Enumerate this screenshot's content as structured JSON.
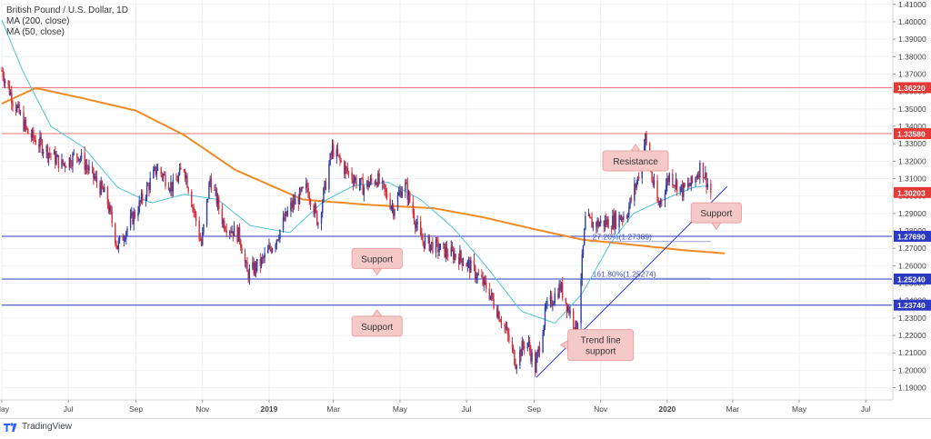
{
  "header": {
    "title": "British Pound / U.S. Dollar, 1D",
    "indicators": [
      "MA (200, close)",
      "MA (50, close)"
    ]
  },
  "footer": {
    "brand": "TradingView"
  },
  "colors": {
    "up": "#2f3fa6",
    "down": "#d32f3b",
    "ma200": "#f08a24",
    "ma50": "#4fc3dc",
    "resistance_line": "#e57373",
    "support_line": "#2b39c4",
    "trendline": "#2b39c4",
    "label_fill": "#f6c9c9",
    "label_stroke": "#e8a3a3"
  },
  "chart_data": {
    "type": "candlestick",
    "title": "British Pound / U.S. Dollar, 1D",
    "x_axis": {
      "type": "date",
      "range": [
        "2018-05-01",
        "2020-07-25"
      ],
      "tick_labels": [
        {
          "date": "2018-05-01",
          "label": "May"
        },
        {
          "date": "2018-07-01",
          "label": "Jul"
        },
        {
          "date": "2018-09-01",
          "label": "Sep"
        },
        {
          "date": "2018-11-01",
          "label": "Nov"
        },
        {
          "date": "2019-01-01",
          "label": "2019"
        },
        {
          "date": "2019-03-01",
          "label": "Mar"
        },
        {
          "date": "2019-05-01",
          "label": "May"
        },
        {
          "date": "2019-07-01",
          "label": "Jul"
        },
        {
          "date": "2019-09-01",
          "label": "Sep"
        },
        {
          "date": "2019-11-01",
          "label": "Nov"
        },
        {
          "date": "2020-01-01",
          "label": "2020"
        },
        {
          "date": "2020-03-01",
          "label": "Mar"
        },
        {
          "date": "2020-05-01",
          "label": "May"
        },
        {
          "date": "2020-07-01",
          "label": "Jul"
        }
      ]
    },
    "y_axis": {
      "min": 1.183,
      "max": 1.4125,
      "ticks": [
        "1.41000",
        "1.40000",
        "1.39000",
        "1.38000",
        "1.37000",
        "1.36000",
        "1.35000",
        "1.34000",
        "1.33000",
        "1.32000",
        "1.31000",
        "1.30000",
        "1.29000",
        "1.28000",
        "1.27000",
        "1.26000",
        "1.25000",
        "1.24000",
        "1.23000",
        "1.22000",
        "1.21000",
        "1.20000",
        "1.19000"
      ]
    },
    "price_badges": [
      {
        "value": "1.36220",
        "color": "#e53935"
      },
      {
        "value": "1.33580",
        "color": "#e53935"
      },
      {
        "value": "1.30203",
        "color": "#e53935"
      },
      {
        "value": "1.27690",
        "color": "#2b39c4"
      },
      {
        "value": "1.25240",
        "color": "#2b39c4"
      },
      {
        "value": "1.23740",
        "color": "#2b39c4"
      }
    ],
    "horizontal_levels": [
      {
        "price": 1.3622,
        "kind": "resistance"
      },
      {
        "price": 1.3358,
        "kind": "resistance"
      },
      {
        "price": 1.2769,
        "kind": "support"
      },
      {
        "price": 1.2524,
        "kind": "support"
      },
      {
        "price": 1.2374,
        "kind": "support"
      }
    ],
    "fib_levels": [
      {
        "label": "27.20%(1.27389)",
        "price": 1.27389,
        "from": "2019-10-22",
        "to": "2020-02-10"
      },
      {
        "label": "161.80%(1.25274)",
        "price": 1.25274,
        "from": "2019-10-22",
        "to": "2020-02-10"
      }
    ],
    "trendline": {
      "from": {
        "date": "2019-09-03",
        "price": 1.1959
      },
      "to": {
        "date": "2020-02-25",
        "price": 1.3055
      }
    },
    "annotations": [
      {
        "text": "Resistance",
        "date": "2019-12-03",
        "price": 1.3202,
        "pointer": "up"
      },
      {
        "text": "Support",
        "date": "2020-02-15",
        "price": 1.2904,
        "pointer": "down"
      },
      {
        "text": "Support",
        "date": "2019-04-10",
        "price": 1.2642,
        "pointer": "down"
      },
      {
        "text": "Support",
        "date": "2019-04-10",
        "price": 1.2253,
        "pointer": "up"
      },
      {
        "text": "Trend line\nsupport",
        "date": "2019-11-01",
        "price": 1.2145,
        "pointer": "left"
      }
    ],
    "close_anchors": [
      [
        "2018-05-01",
        1.372
      ],
      [
        "2018-05-12",
        1.354
      ],
      [
        "2018-05-25",
        1.336
      ],
      [
        "2018-06-10",
        1.327
      ],
      [
        "2018-06-25",
        1.318
      ],
      [
        "2018-07-10",
        1.324
      ],
      [
        "2018-07-25",
        1.31
      ],
      [
        "2018-08-05",
        1.299
      ],
      [
        "2018-08-15",
        1.271
      ],
      [
        "2018-08-25",
        1.283
      ],
      [
        "2018-09-05",
        1.296
      ],
      [
        "2018-09-20",
        1.316
      ],
      [
        "2018-10-05",
        1.305
      ],
      [
        "2018-10-15",
        1.317
      ],
      [
        "2018-10-31",
        1.272
      ],
      [
        "2018-11-08",
        1.31
      ],
      [
        "2018-11-20",
        1.285
      ],
      [
        "2018-12-05",
        1.277
      ],
      [
        "2018-12-12",
        1.255
      ],
      [
        "2018-12-25",
        1.262
      ],
      [
        "2019-01-07",
        1.275
      ],
      [
        "2019-01-20",
        1.293
      ],
      [
        "2019-02-05",
        1.305
      ],
      [
        "2019-02-15",
        1.285
      ],
      [
        "2019-02-28",
        1.327
      ],
      [
        "2019-03-12",
        1.315
      ],
      [
        "2019-03-28",
        1.305
      ],
      [
        "2019-04-10",
        1.31
      ],
      [
        "2019-04-25",
        1.293
      ],
      [
        "2019-05-05",
        1.308
      ],
      [
        "2019-05-20",
        1.275
      ],
      [
        "2019-06-05",
        1.27
      ],
      [
        "2019-06-25",
        1.265
      ],
      [
        "2019-07-05",
        1.259
      ],
      [
        "2019-07-20",
        1.247
      ],
      [
        "2019-08-05",
        1.225
      ],
      [
        "2019-08-15",
        1.205
      ],
      [
        "2019-08-25",
        1.218
      ],
      [
        "2019-09-02",
        1.201
      ],
      [
        "2019-09-12",
        1.235
      ],
      [
        "2019-09-25",
        1.248
      ],
      [
        "2019-10-07",
        1.228
      ],
      [
        "2019-10-10",
        1.222
      ],
      [
        "2019-10-18",
        1.286
      ],
      [
        "2019-10-25",
        1.284
      ],
      [
        "2019-11-10",
        1.285
      ],
      [
        "2019-11-25",
        1.29
      ],
      [
        "2019-12-05",
        1.31
      ],
      [
        "2019-12-12",
        1.333
      ],
      [
        "2019-12-18",
        1.31
      ],
      [
        "2019-12-24",
        1.294
      ],
      [
        "2020-01-03",
        1.312
      ],
      [
        "2020-01-15",
        1.303
      ],
      [
        "2020-01-25",
        1.308
      ],
      [
        "2020-02-01",
        1.318
      ],
      [
        "2020-02-10",
        1.302
      ]
    ],
    "ma200_anchors": [
      [
        "2018-05-01",
        1.353
      ],
      [
        "2018-06-01",
        1.362
      ],
      [
        "2018-07-15",
        1.356
      ],
      [
        "2018-09-01",
        1.349
      ],
      [
        "2018-10-15",
        1.335
      ],
      [
        "2018-12-01",
        1.315
      ],
      [
        "2019-02-01",
        1.298
      ],
      [
        "2019-04-01",
        1.295
      ],
      [
        "2019-06-01",
        1.293
      ],
      [
        "2019-07-15",
        1.288
      ],
      [
        "2019-09-01",
        1.281
      ],
      [
        "2019-10-15",
        1.275
      ],
      [
        "2019-12-01",
        1.272
      ],
      [
        "2020-01-15",
        1.269
      ],
      [
        "2020-02-25",
        1.267
      ]
    ],
    "ma50_anchors": [
      [
        "2018-05-01",
        1.401
      ],
      [
        "2018-05-20",
        1.372
      ],
      [
        "2018-06-15",
        1.34
      ],
      [
        "2018-07-15",
        1.328
      ],
      [
        "2018-08-15",
        1.305
      ],
      [
        "2018-09-15",
        1.296
      ],
      [
        "2018-10-15",
        1.301
      ],
      [
        "2018-11-15",
        1.298
      ],
      [
        "2018-12-15",
        1.283
      ],
      [
        "2019-01-20",
        1.279
      ],
      [
        "2019-02-20",
        1.297
      ],
      [
        "2019-03-20",
        1.306
      ],
      [
        "2019-04-20",
        1.308
      ],
      [
        "2019-05-20",
        1.298
      ],
      [
        "2019-06-20",
        1.281
      ],
      [
        "2019-07-20",
        1.259
      ],
      [
        "2019-08-20",
        1.234
      ],
      [
        "2019-09-20",
        1.227
      ],
      [
        "2019-10-15",
        1.244
      ],
      [
        "2019-11-10",
        1.273
      ],
      [
        "2019-12-01",
        1.29
      ],
      [
        "2019-12-25",
        1.297
      ],
      [
        "2020-01-25",
        1.305
      ],
      [
        "2020-02-10",
        1.306
      ]
    ]
  }
}
